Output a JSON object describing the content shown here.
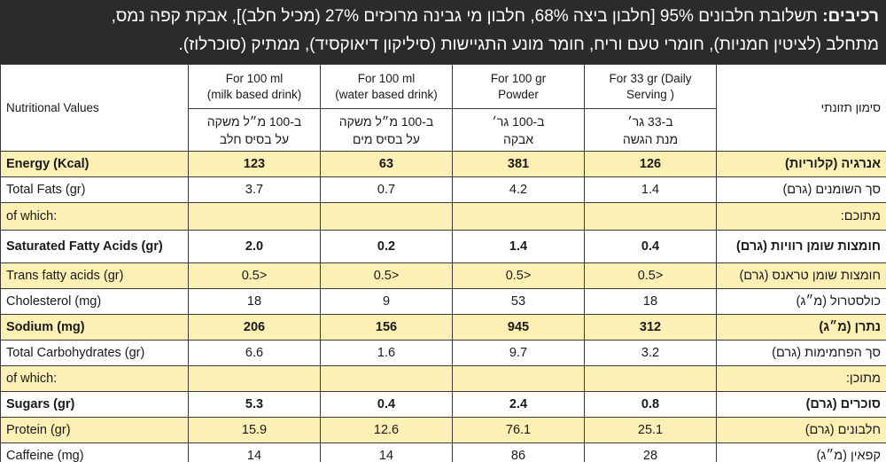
{
  "ingredients": {
    "label": "רכיבים:",
    "text_line1": " תשלובת חלבונים 95% [חלבון ביצה 68%, חלבון מי גבינה מרוכזים 27% (מכיל חלב)], אבקת קפה נמס,",
    "text_line2": "מתחלב (לציטין חמניות), חומרי טעם וריח, חומר מונע התגיישות (סיליקון דיאוקסיד), ממתיק (סוכרלוז)."
  },
  "table": {
    "label_en": "Nutritional Values",
    "label_he": "סימון תזונתי",
    "columns": [
      {
        "en_line1": "For 100 ml",
        "en_line2": "(milk based drink)",
        "he_line1": "ב-100 מ״ל משקה",
        "he_line2": "על בסיס חלב"
      },
      {
        "en_line1": "For 100 ml",
        "en_line2": "(water based drink)",
        "he_line1": "ב-100 מ״ל משקה",
        "he_line2": "על בסיס מים"
      },
      {
        "en_line1": "For 100 gr",
        "en_line2": "Powder",
        "he_line1": "ב-100 גר׳",
        "he_line2": "אבקה"
      },
      {
        "en_line1": "For 33 gr (Daily",
        "en_line2": "Serving )",
        "he_line1": "ב-33 גר׳",
        "he_line2": "מנת הגשה"
      }
    ],
    "rows": [
      {
        "en": "Energy (Kcal)",
        "he": "אנרגיה (קלוריות)",
        "values": [
          "123",
          "63",
          "381",
          "126"
        ]
      },
      {
        "en": "Total Fats (gr)",
        "he": "סך השומנים (גרם)",
        "values": [
          "3.7",
          "0.7",
          "4.2",
          "1.4"
        ]
      },
      {
        "en": "of which:",
        "he": "מתוכם:",
        "values": [
          "",
          "",
          "",
          ""
        ]
      },
      {
        "en": "Saturated Fatty Acids (gr)",
        "he": "חומצות שומן רוויות (גרם)",
        "values": [
          "2.0",
          "0.2",
          "1.4",
          "0.4"
        ]
      },
      {
        "en": "Trans fatty acids (gr)",
        "he": "חומצות שומן טראנס (גרם)",
        "values": [
          "0.5>",
          "0.5>",
          "0.5>",
          "0.5>"
        ]
      },
      {
        "en": "Cholesterol (mg)",
        "he": "כולסטרול (מ״ג)",
        "values": [
          "18",
          "9",
          "53",
          "18"
        ]
      },
      {
        "en": "Sodium (mg)",
        "he": "נתרן (מ״ג)",
        "values": [
          "206",
          "156",
          "945",
          "312"
        ]
      },
      {
        "en": "Total Carbohydrates (gr)",
        "he": "סך הפחמימות (גרם)",
        "values": [
          "6.6",
          "1.6",
          "9.7",
          "3.2"
        ]
      },
      {
        "en": "of which:",
        "he": "מתוכן:",
        "values": [
          "",
          "",
          "",
          ""
        ]
      },
      {
        "en": "Sugars (gr)",
        "he": "סוכרים (גרם)",
        "values": [
          "5.3",
          "0.4",
          "2.4",
          "0.8"
        ]
      },
      {
        "en": "Protein (gr)",
        "he": "חלבונים (גרם)",
        "values": [
          "15.9",
          "12.6",
          "76.1",
          "25.1"
        ]
      },
      {
        "en": "Caffeine (mg)",
        "he": "קפאין (מ״ג)",
        "values": [
          "14",
          "14",
          "86",
          "28"
        ]
      }
    ]
  },
  "colors": {
    "header_bg": "#2b2b2b",
    "highlight_row": "#fdf0b4",
    "border": "#3a3a3a"
  }
}
